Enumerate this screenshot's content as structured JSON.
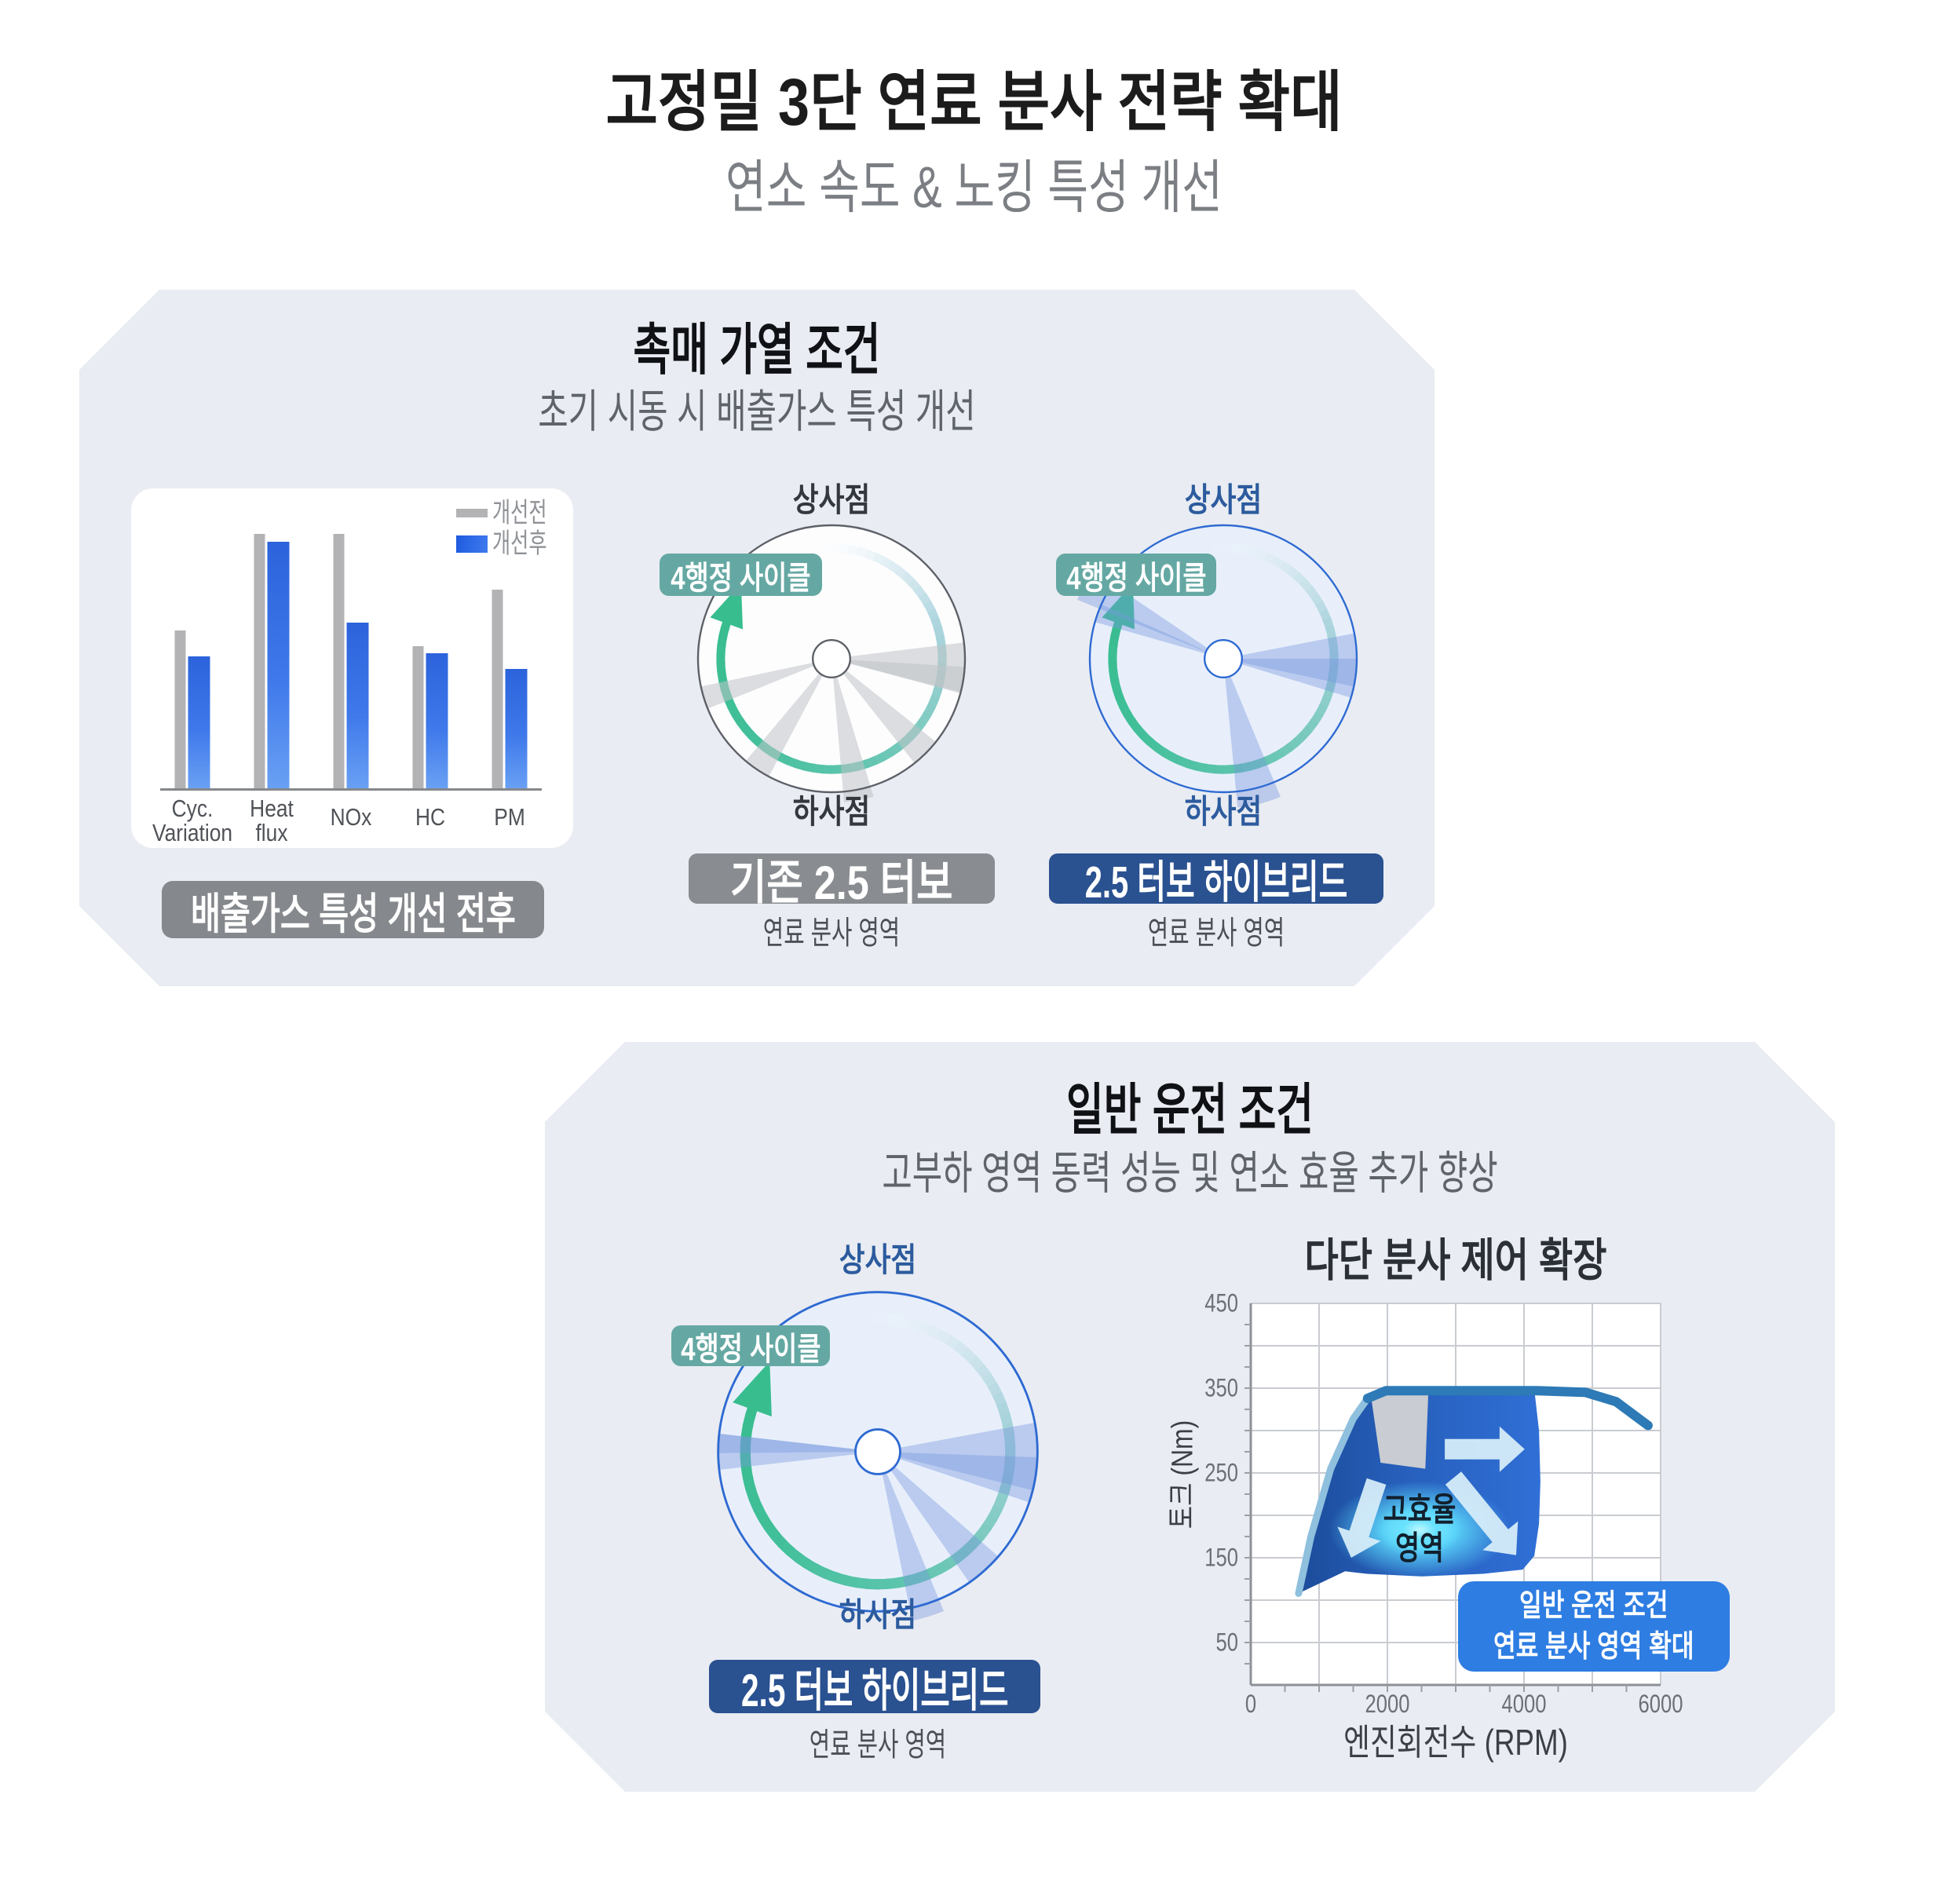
{
  "header": {
    "title": "고정밀 3단 연료 분사 전략 확대",
    "subtitle": "연소 속도 & 노킹 특성 개선"
  },
  "top_panel": {
    "heading": "촉매 가열 조건",
    "subheading": "초기 시동 시 배출가스 특성 개선",
    "emissions": {
      "legend_before": "개선전",
      "legend_after": "개선후",
      "caption": "배출가스 특성 개선 전후"
    },
    "cycle_turbo": {
      "label_top": "상사점",
      "label_bottom": "하사점",
      "badge": "4행정 사이클",
      "name": "기존 2.5 터보",
      "caption": "연료 분사 영역"
    },
    "cycle_hybrid": {
      "label_top": "상사점",
      "label_bottom": "하사점",
      "badge": "4행정 사이클",
      "name": "2.5 터보 하이브리드",
      "caption": "연료 분사 영역"
    }
  },
  "bottom_panel": {
    "heading": "일반 운전 조건",
    "subheading": "고부하 영역 동력 성능 및 연소 효율 추가 향상",
    "cycle_hybrid": {
      "label_top": "상사점",
      "label_bottom": "하사점",
      "badge": "4행정 사이클",
      "name": "2.5 터보 하이브리드",
      "caption": "연료 분사 영역"
    },
    "torque": {
      "title": "다단 분사 제어 확장",
      "ylabel": "토크 (Nm)",
      "xlabel": "엔진회전수 (RPM)",
      "region_label": "고효율\n영역",
      "callout": "일반 운전 조건\n연료 분사 영역 확대"
    }
  },
  "colors": {
    "panel_bg": "#e9ecf2",
    "bar_before": "#b3b3b6",
    "bar_after_top": "#2c63dc",
    "bar_after_bottom": "#69a0f4",
    "teal_badge": "#65a8a3",
    "navy_badge": "#2a5190",
    "gray_badge": "#898c90",
    "caption_badge": "#85888c",
    "callout_blue": "#2e7de2",
    "torque_line": "#2d7ab6",
    "arc_green": "#39bd8f"
  },
  "chart_data": [
    {
      "type": "bar",
      "title": "배출가스 특성 개선 전후",
      "categories": [
        "Cyc.\nVariation",
        "Heat\nflux",
        "NOx",
        "HC",
        "PM"
      ],
      "series": [
        {
          "name": "개선전",
          "values": [
            62,
            100,
            100,
            56,
            78
          ]
        },
        {
          "name": "개선후",
          "values": [
            52,
            97,
            65,
            53,
            47
          ]
        }
      ],
      "ylabel": "",
      "xlabel": "",
      "ylim": [
        0,
        100
      ],
      "unit": "relative %"
    },
    {
      "type": "area",
      "title": "다단 분사 제어 확장",
      "xlabel": "엔진회전수 (RPM)",
      "ylabel": "토크 (Nm)",
      "xlim": [
        0,
        6000
      ],
      "ylim": [
        0,
        450
      ],
      "x_ticks": [
        0,
        2000,
        4000,
        6000
      ],
      "y_ticks": [
        450,
        350,
        250,
        150,
        50
      ],
      "grid_step_x": 1000,
      "grid_step_y": 50,
      "minor_tick_x": 500,
      "minor_tick_y": 25,
      "torque_curve": [
        [
          700,
          108
        ],
        [
          880,
          175
        ],
        [
          1170,
          255
        ],
        [
          1500,
          314
        ],
        [
          1710,
          338
        ],
        [
          1980,
          347
        ],
        [
          3000,
          347
        ],
        [
          4200,
          347
        ],
        [
          4900,
          345
        ],
        [
          5350,
          334
        ],
        [
          5815,
          306
        ]
      ],
      "injection_region": [
        [
          700,
          108
        ],
        [
          880,
          175
        ],
        [
          1170,
          255
        ],
        [
          1500,
          314
        ],
        [
          1710,
          338
        ],
        [
          1980,
          347
        ],
        [
          3000,
          348
        ],
        [
          4050,
          347
        ],
        [
          4160,
          342
        ],
        [
          4220,
          300
        ],
        [
          4240,
          240
        ],
        [
          4220,
          190
        ],
        [
          4150,
          152
        ],
        [
          3980,
          136
        ],
        [
          3400,
          131
        ],
        [
          2500,
          128
        ],
        [
          1700,
          131
        ],
        [
          1380,
          134
        ]
      ],
      "restricted_region": [
        [
          1755,
          343
        ],
        [
          2600,
          346
        ],
        [
          2555,
          255
        ],
        [
          1900,
          262
        ]
      ],
      "expansion_arrows": [
        {
          "from": [
            2840,
            278
          ],
          "to": [
            4010,
            278
          ]
        },
        {
          "from": [
            1840,
            240
          ],
          "to": [
            1470,
            150
          ]
        },
        {
          "from": [
            2965,
            244
          ],
          "to": [
            3885,
            153
          ]
        }
      ],
      "glow_center": [
        2470,
        183
      ]
    },
    {
      "type": "cycle-diagrams",
      "note": "fuel injection wedges as [center_angle_deg, width_deg, reach]; 0 deg = right, CCW positive; arc = 4-stroke cycle arrow drawn clockwise from start_deg to end_deg",
      "diagrams": [
        {
          "name": "기존 2.5 터보",
          "theme": "gray",
          "wedges": [
            [
              -4,
              22,
              1.0
            ],
            [
              -9,
              11,
              1.0
            ],
            [
              -45,
              13,
              1.0
            ],
            [
              -79,
              12,
              1.08
            ],
            [
              -124,
              12,
              1.0
            ],
            [
              197,
              10,
              1.0
            ]
          ],
          "arc": {
            "start_deg": 95,
            "end_deg": -200,
            "arrow": true
          }
        },
        {
          "name": "2.5 터보 하이브리드",
          "theme": "blue",
          "wedges": [
            [
              -3,
              28,
              1.0
            ],
            [
              -6,
              12,
              1.0
            ],
            [
              -76,
              17,
              1.12
            ],
            [
              152,
              12,
              1.18
            ],
            [
              160,
              8,
              1.0
            ]
          ],
          "arc": {
            "start_deg": 95,
            "end_deg": -200,
            "arrow": true
          }
        },
        {
          "name": "2.5 터보 하이브리드 (일반 운전)",
          "theme": "blue",
          "wedges": [
            [
              180,
              13,
              1.0
            ],
            [
              177,
              7,
              1.0
            ],
            [
              -4,
              29,
              1.0
            ],
            [
              -8,
              12,
              1.0
            ],
            [
              -48,
              14,
              1.0
            ],
            [
              -73,
              11,
              1.08
            ]
          ],
          "arc": {
            "start_deg": 95,
            "end_deg": -200,
            "arrow": true
          }
        }
      ]
    }
  ]
}
